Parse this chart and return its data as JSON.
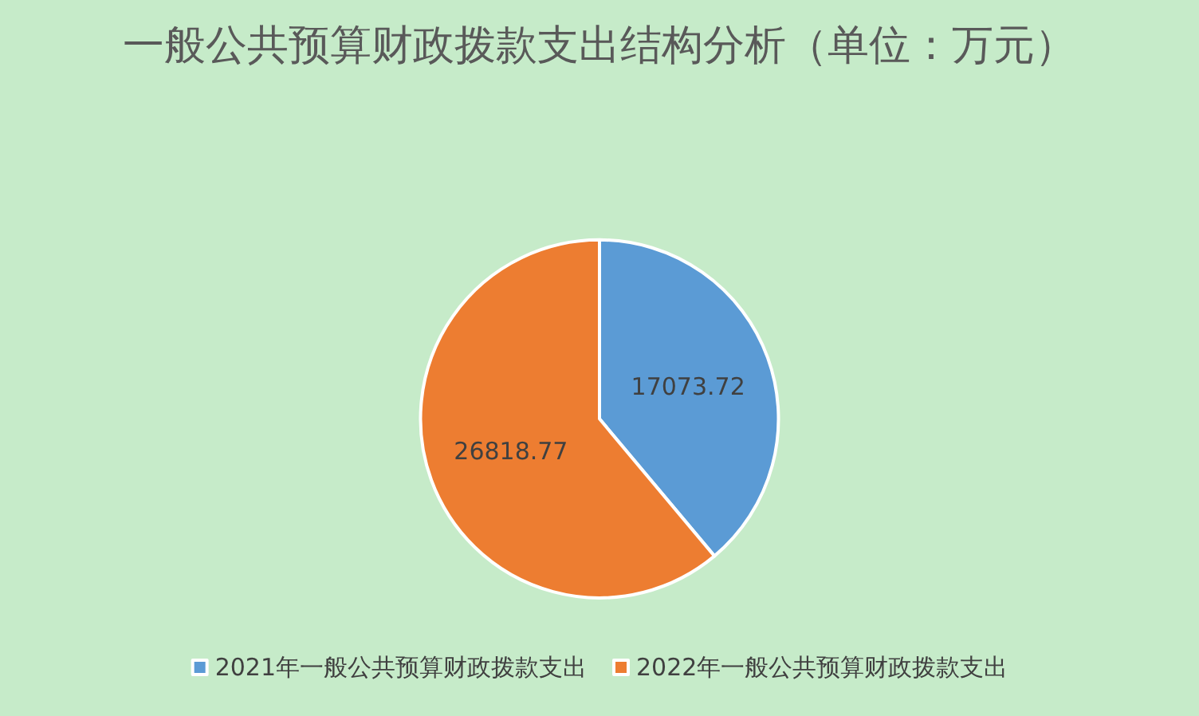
{
  "chart_data": {
    "type": "pie",
    "title": "一般公共预算财政拨款支出结构分析（单位：万元）",
    "categories": [
      "2021年一般公共预算财政拨款支出",
      "2022年一般公共预算财政拨款支出"
    ],
    "values": [
      17073.72,
      26818.77
    ],
    "colors": [
      "#5b9bd5",
      "#ed7d31"
    ],
    "data_labels": true,
    "legend": "bottom"
  }
}
